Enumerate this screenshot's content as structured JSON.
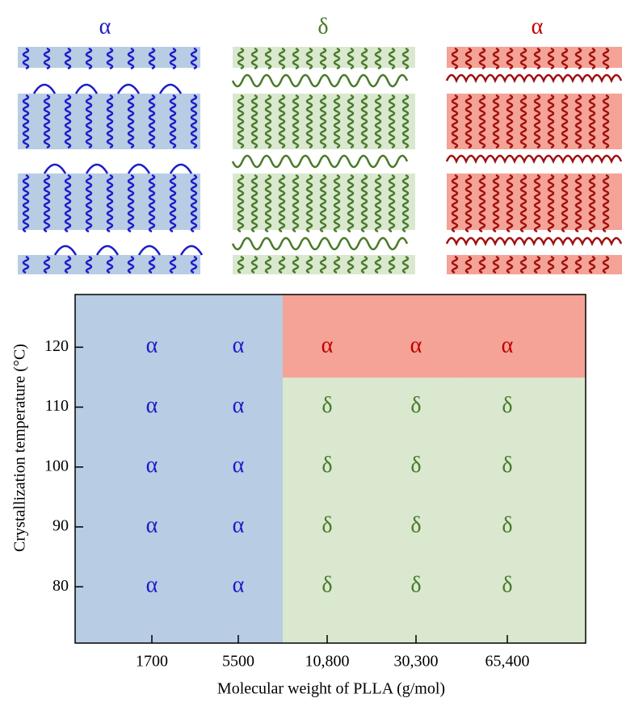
{
  "chart_data": {
    "type": "phase-map",
    "xlabel": "Molecular weight of PLLA (g/mol)",
    "ylabel": "Crystallization temperature (°C)",
    "categories": [
      "1700",
      "5500",
      "10,800",
      "30,300",
      "65,400"
    ],
    "ylim": [
      70.6,
      128.8
    ],
    "yticks": [
      80,
      90,
      100,
      110,
      120
    ],
    "phases": [
      {
        "label": "α",
        "color": "#1c1cc8",
        "fill": "#b8cce4",
        "chain": "#1c1cc8"
      },
      {
        "label": "δ",
        "color": "#4a7a2a",
        "fill": "#d9e8cf",
        "chain": "#4a7a2a"
      },
      {
        "label": "α",
        "color": "#c00000",
        "fill": "#f4a396",
        "chain": "#a01010"
      }
    ],
    "cells": [
      [
        0,
        0,
        1,
        1,
        1
      ],
      [
        0,
        0,
        1,
        1,
        1
      ],
      [
        0,
        0,
        1,
        1,
        1
      ],
      [
        0,
        0,
        1,
        1,
        1
      ],
      [
        0,
        0,
        2,
        2,
        2
      ]
    ]
  }
}
